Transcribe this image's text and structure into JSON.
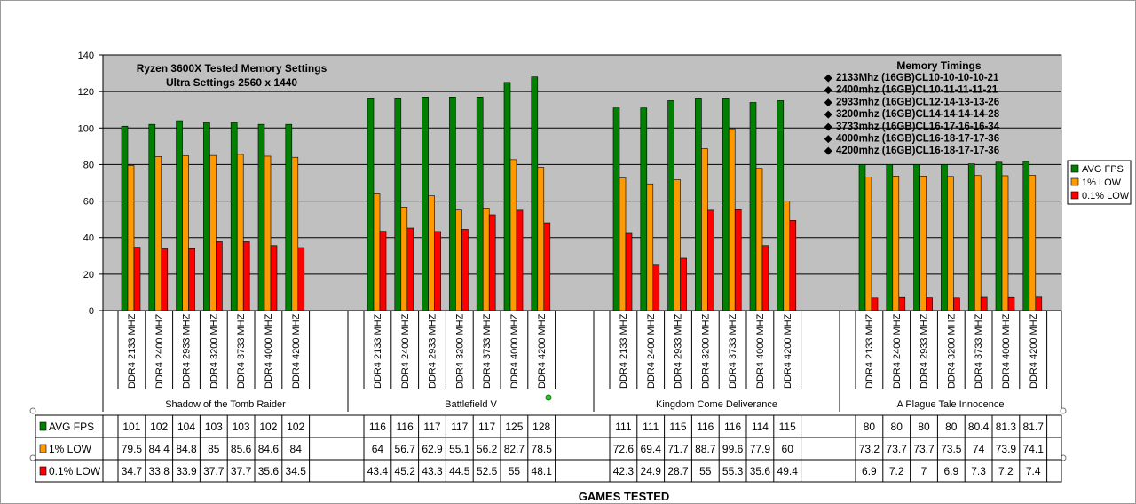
{
  "chart_data": {
    "type": "bar",
    "title_lines": [
      "Ryzen 3600X Tested Memory Settings",
      "Ultra Settings 2560 x 1440"
    ],
    "xlabel": "GAMES TESTED",
    "ylim": [
      0,
      140
    ],
    "yticks": [
      0,
      20,
      40,
      60,
      80,
      100,
      120,
      140
    ],
    "grid": true,
    "legend_position": "right",
    "colors": {
      "AVG FPS": "#008000",
      "1% LOW": "#ff9900",
      "0.1% LOW": "#ff0000",
      "plot_bg": "#c0c0c0"
    },
    "memory_timings": {
      "title": "Memory Timings",
      "items": [
        "2133Mhz (16GB)CL10-10-10-10-21",
        "2400mhz (16GB)CL10-11-11-11-21",
        "2933mhz (16GB)CL12-14-13-13-26",
        "3200mhz (16GB)CL14-14-14-14-28",
        "3733mhz (16GB)CL16-17-16-16-34",
        "4000mhz (16GB)CL16-18-17-17-36",
        "4200mhz (16GB)CL16-18-17-17-36"
      ]
    },
    "configs": [
      "DDR4 2133 MHZ",
      "DDR4 2400 MHZ",
      "DDR4 2933 MHZ",
      "DDR4 3200 MHZ",
      "DDR4 3733 MHZ",
      "DDR4 4000 MHZ",
      "DDR4 4200 MHZ"
    ],
    "games": [
      {
        "name": "Shadow of the Tomb Raider",
        "series": [
          {
            "name": "AVG FPS",
            "values": [
              101,
              102,
              104,
              103,
              103,
              102,
              102
            ]
          },
          {
            "name": "1% LOW",
            "values": [
              79.5,
              84.4,
              84.8,
              85,
              85.6,
              84.6,
              84
            ]
          },
          {
            "name": "0.1% LOW",
            "values": [
              34.7,
              33.8,
              33.9,
              37.7,
              37.7,
              35.6,
              34.5
            ]
          }
        ]
      },
      {
        "name": "Battlefield V",
        "series": [
          {
            "name": "AVG FPS",
            "values": [
              116,
              116,
              117,
              117,
              117,
              125,
              128
            ]
          },
          {
            "name": "1% LOW",
            "values": [
              64,
              56.7,
              62.9,
              55.1,
              56.2,
              82.7,
              78.5
            ]
          },
          {
            "name": "0.1% LOW",
            "values": [
              43.4,
              45.2,
              43.3,
              44.5,
              52.5,
              55,
              48.1
            ]
          }
        ]
      },
      {
        "name": "Kingdom Come Deliverance",
        "series": [
          {
            "name": "AVG FPS",
            "values": [
              111,
              111,
              115,
              116,
              116,
              114,
              115
            ]
          },
          {
            "name": "1% LOW",
            "values": [
              72.6,
              69.4,
              71.7,
              88.7,
              99.6,
              77.9,
              60
            ]
          },
          {
            "name": "0.1% LOW",
            "values": [
              42.3,
              24.9,
              28.7,
              55,
              55.3,
              35.6,
              49.4
            ]
          }
        ]
      },
      {
        "name": "A Plague Tale Innocence",
        "series": [
          {
            "name": "AVG FPS",
            "values": [
              80,
              80,
              80,
              80,
              80.4,
              81.3,
              81.7
            ]
          },
          {
            "name": "1% LOW",
            "values": [
              73.2,
              73.7,
              73.7,
              73.5,
              74,
              73.9,
              74.1
            ]
          },
          {
            "name": "0.1% LOW",
            "values": [
              6.9,
              7.2,
              7,
              6.9,
              7.3,
              7.2,
              7.4
            ]
          }
        ]
      }
    ],
    "table_rows": [
      {
        "label": "AVG FPS",
        "cells": [
          "101",
          "102",
          "104",
          "103",
          "103",
          "102",
          "102",
          "116",
          "116",
          "117",
          "117",
          "117",
          "125",
          "128",
          "111",
          "111",
          "115",
          "116",
          "116",
          "114",
          "115",
          "80",
          "80",
          "80",
          "80",
          "80.4",
          "81.3",
          "81.7"
        ]
      },
      {
        "label": "1% LOW",
        "cells": [
          "79.5",
          "84.4",
          "84.8",
          "85",
          "85.6",
          "84.6",
          "84",
          "64",
          "56.7",
          "62.9",
          "55.1",
          "56.2",
          "82.7",
          "78.5",
          "72.6",
          "69.4",
          "71.7",
          "88.7",
          "99.6",
          "77.9",
          "60",
          "73.2",
          "73.7",
          "73.7",
          "73.5",
          "74",
          "73.9",
          "74.1"
        ]
      },
      {
        "label": "0.1% LOW",
        "cells": [
          "34.7",
          "33.8",
          "33.9",
          "37.7",
          "37.7",
          "35.6",
          "34.5",
          "43.4",
          "45.2",
          "43.3",
          "44.5",
          "52.5",
          "55",
          "48.1",
          "42.3",
          "24.9",
          "28.7",
          "55",
          "55.3",
          "35.6",
          "49.4",
          "6.9",
          "7.2",
          "7",
          "6.9",
          "7.3",
          "7.2",
          "7.4"
        ]
      }
    ]
  }
}
